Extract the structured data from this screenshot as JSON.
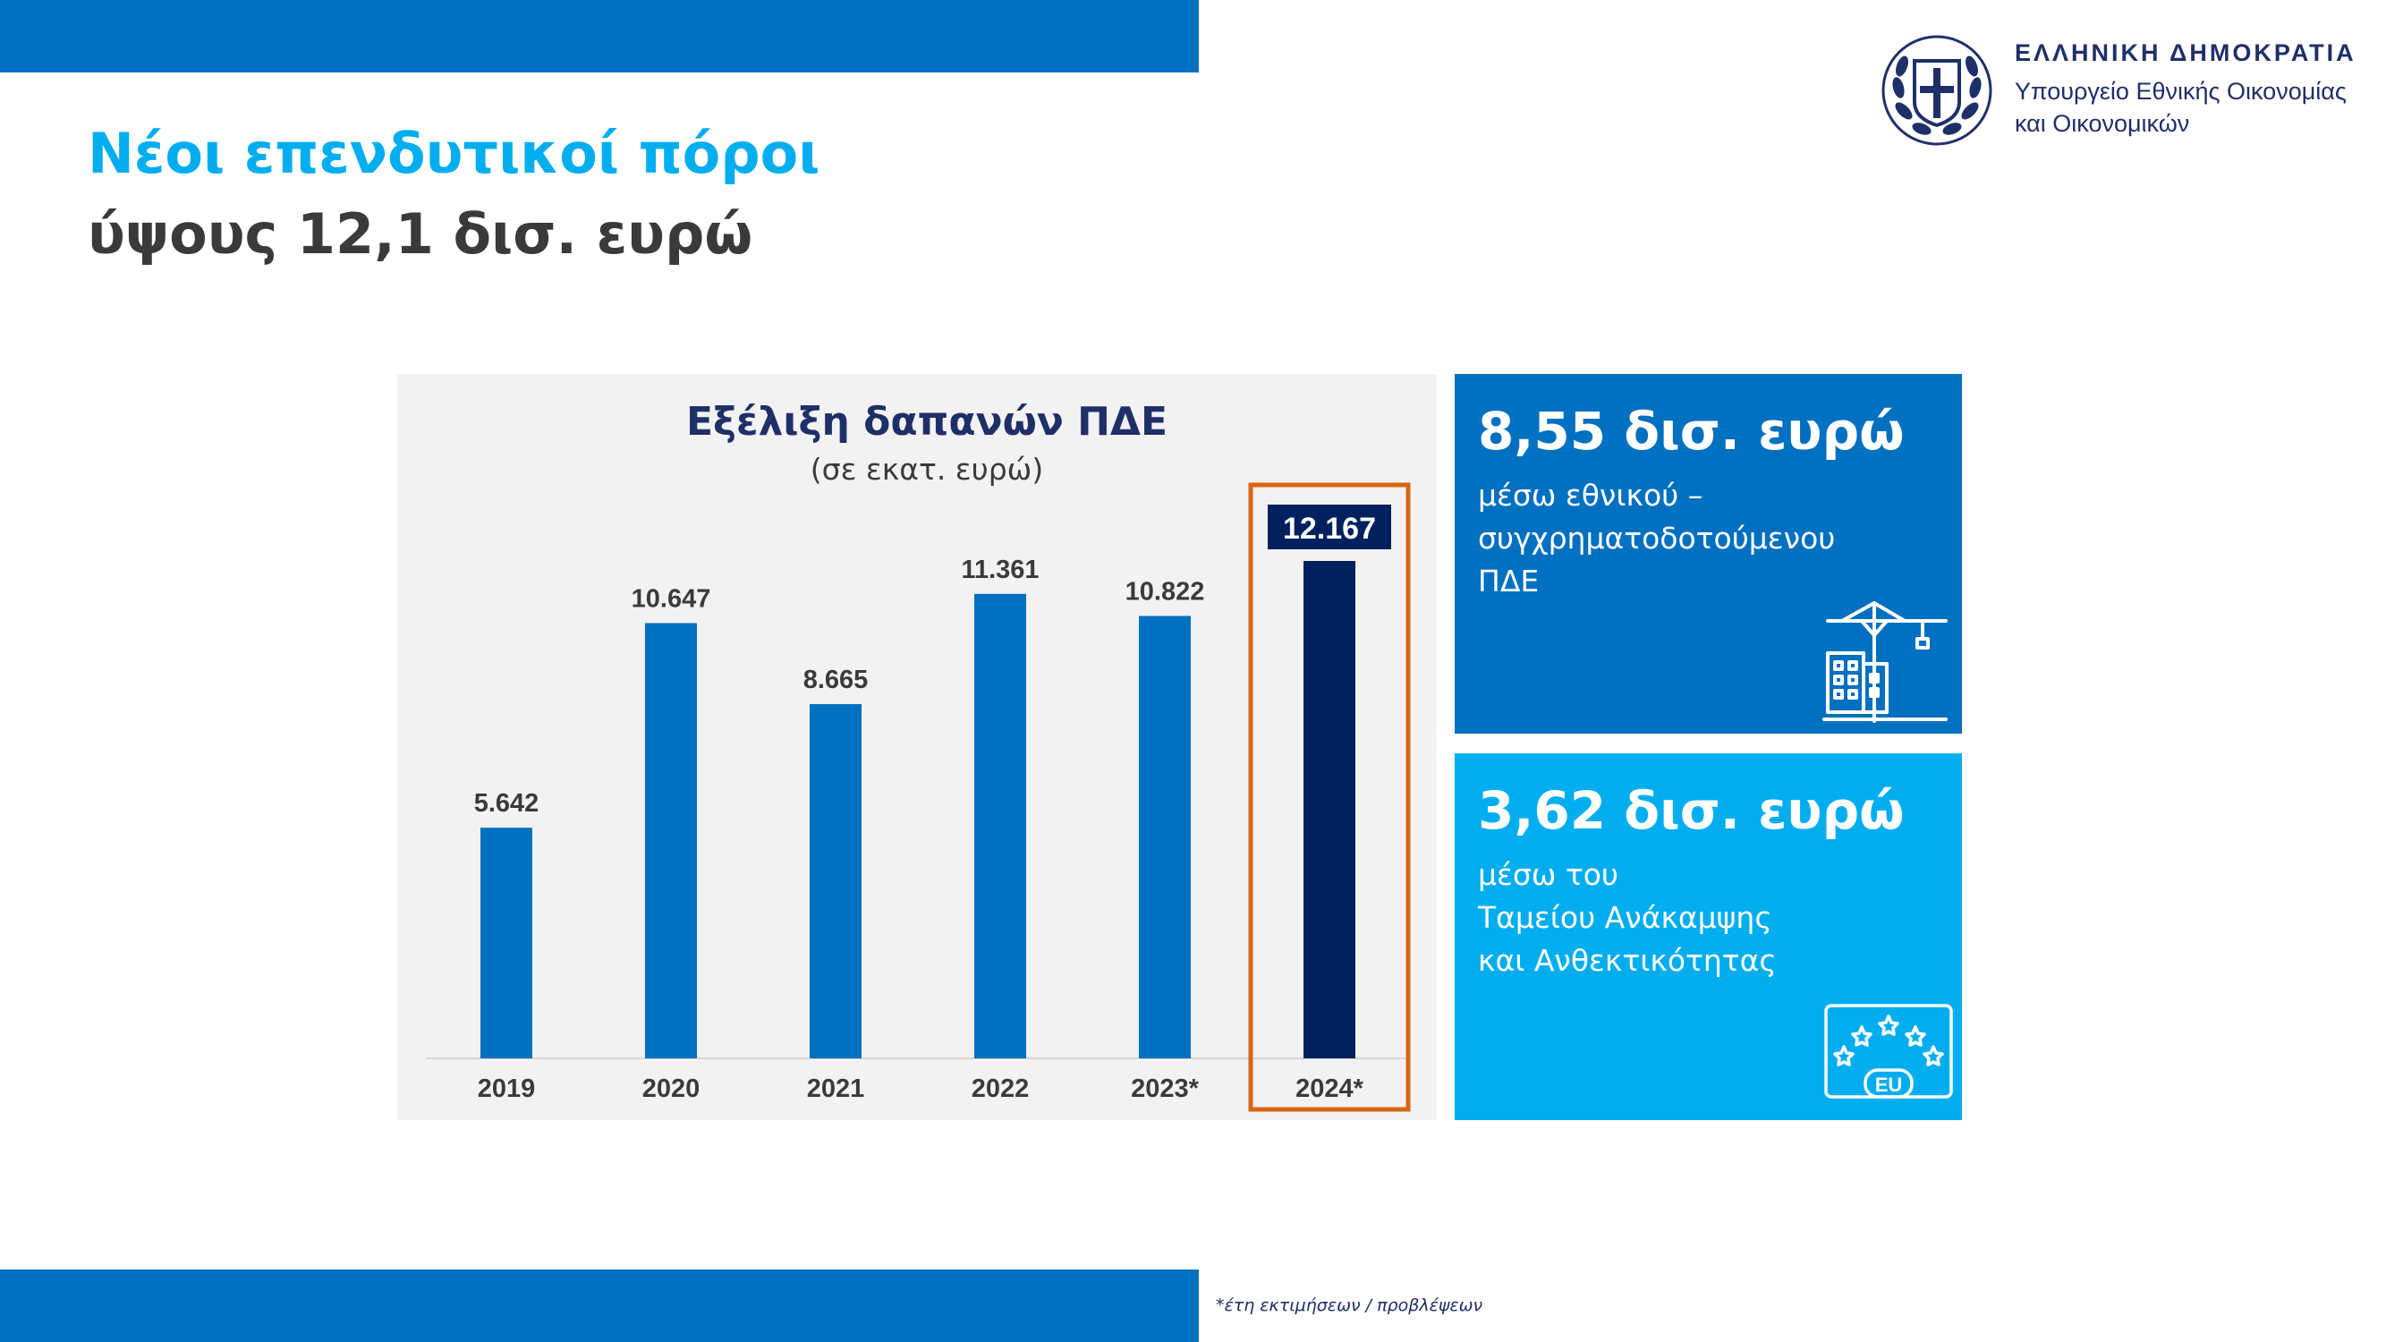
{
  "header": {
    "title_line1": "Νέοι επενδυτικοί πόροι",
    "title_line2": "ύψους 12,1 δισ. ευρώ"
  },
  "government": {
    "name": "ΕΛΛΗΝΙΚΗ ΔΗΜΟΚΡΑΤΙΑ",
    "ministry_line1": "Υπουργείο Εθνικής Οικονομίας",
    "ministry_line2": "και Οικονομικών"
  },
  "chart_data": {
    "type": "bar",
    "title": "Εξέλιξη δαπανών ΠΔΕ",
    "subtitle": "(σε εκατ. ευρώ)",
    "categories": [
      "2019",
      "2020",
      "2021",
      "2022",
      "2023*",
      "2024*"
    ],
    "values": [
      5642,
      10647,
      8665,
      11361,
      10822,
      12167
    ],
    "value_labels": [
      "5.642",
      "10.647",
      "8.665",
      "11.361",
      "10.822",
      "12.167"
    ],
    "highlighted_category": "2024*",
    "ylim": [
      0,
      12167
    ],
    "grid": false,
    "legend": "none",
    "colors": {
      "bar": "#0070c0",
      "highlight_bar": "#002060",
      "highlight_frame": "#d86613"
    }
  },
  "cards": [
    {
      "amount": "8,55 δισ. ευρώ",
      "lines": [
        "μέσω εθνικού –",
        "συγχρηματοδοτούμενου",
        "ΠΔΕ"
      ],
      "icon": "construction-crane-icon",
      "color": "#0070c0"
    },
    {
      "amount": "3,62 δισ. ευρώ",
      "lines": [
        "μέσω του",
        "Ταμείου Ανάκαμψης",
        "και Ανθεκτικότητας"
      ],
      "icon": "eu-flag-icon",
      "icon_text": "EU",
      "color": "#00aeef"
    }
  ],
  "footnote": "*έτη εκτιμήσεων / προβλέψεων"
}
